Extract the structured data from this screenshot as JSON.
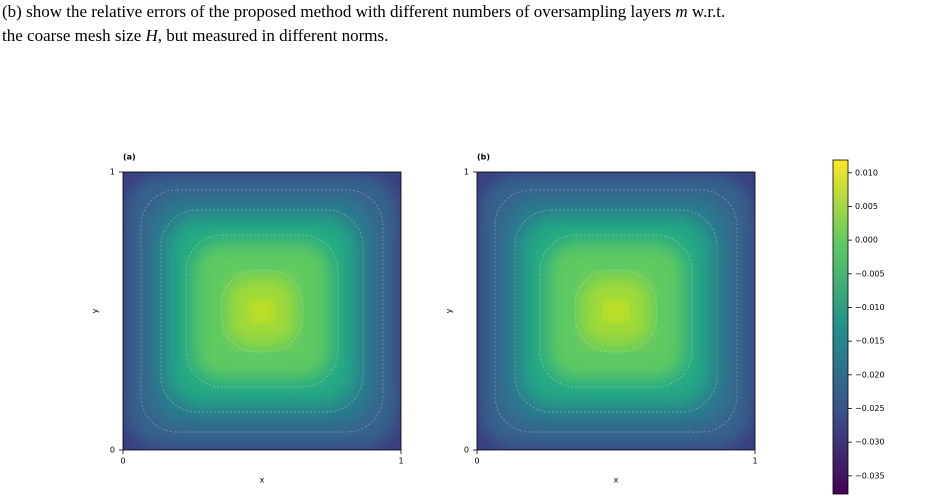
{
  "text": {
    "lines": [
      [
        "(b) show the relative errors of the proposed method with different numbers of oversampling layers ",
        "m",
        " w.r.t."
      ],
      [
        "the coarse mesh size ",
        "H",
        ", but measured in different norms."
      ]
    ]
  },
  "figure": {
    "panels": [
      {
        "label": "(a)",
        "xlabel": "x",
        "ylabel": "y",
        "xticks": [
          0,
          1
        ],
        "yticks": [
          0,
          1
        ]
      },
      {
        "label": "(b)",
        "xlabel": "x",
        "ylabel": "y",
        "xticks": [
          0,
          1
        ],
        "yticks": [
          0,
          1
        ]
      }
    ],
    "colorbar": {
      "lim": [
        -0.0377,
        0.0119
      ],
      "ticks": [
        {
          "value": 0.01,
          "label": "0.010"
        },
        {
          "value": 0.005,
          "label": "0.005"
        },
        {
          "value": 0,
          "label": "0.000"
        },
        {
          "value": -0.005,
          "label": "−0.005"
        },
        {
          "value": -0.01,
          "label": "−0.010"
        },
        {
          "value": -0.015,
          "label": "−0.015"
        },
        {
          "value": -0.02,
          "label": "−0.020"
        },
        {
          "value": -0.025,
          "label": "−0.025"
        },
        {
          "value": -0.03,
          "label": "−0.030"
        },
        {
          "value": -0.035,
          "label": "−0.035"
        }
      ]
    }
  }
}
